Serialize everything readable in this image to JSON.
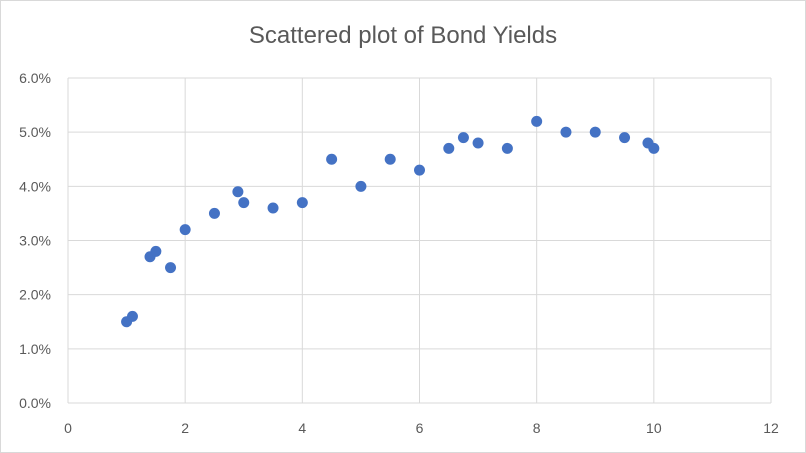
{
  "chart_data": {
    "type": "scatter",
    "title": "Scattered plot of Bond Yields",
    "xlabel": "",
    "ylabel": "",
    "xlim": [
      0,
      12
    ],
    "ylim": [
      0,
      0.06
    ],
    "x_ticks": [
      0,
      2,
      4,
      6,
      8,
      10,
      12
    ],
    "x_tick_labels": [
      "0",
      "2",
      "4",
      "6",
      "8",
      "10",
      "12"
    ],
    "y_ticks": [
      0,
      0.01,
      0.02,
      0.03,
      0.04,
      0.05,
      0.06
    ],
    "y_tick_labels": [
      "0.0%",
      "1.0%",
      "2.0%",
      "3.0%",
      "4.0%",
      "5.0%",
      "6.0%"
    ],
    "grid": {
      "vertical": true,
      "horizontal": true
    },
    "legend": "none",
    "colors": {
      "marker": "#4472c4",
      "grid": "#d9d9d9",
      "text": "#595959"
    },
    "series": [
      {
        "points": [
          [
            1.0,
            0.015
          ],
          [
            1.1,
            0.016
          ],
          [
            1.4,
            0.027
          ],
          [
            1.5,
            0.028
          ],
          [
            1.75,
            0.025
          ],
          [
            2.0,
            0.032
          ],
          [
            2.5,
            0.035
          ],
          [
            2.9,
            0.039
          ],
          [
            3.0,
            0.037
          ],
          [
            3.5,
            0.036
          ],
          [
            4.0,
            0.037
          ],
          [
            4.5,
            0.045
          ],
          [
            5.0,
            0.04
          ],
          [
            5.5,
            0.045
          ],
          [
            6.0,
            0.043
          ],
          [
            6.5,
            0.047
          ],
          [
            6.75,
            0.049
          ],
          [
            7.0,
            0.048
          ],
          [
            7.5,
            0.047
          ],
          [
            8.0,
            0.052
          ],
          [
            8.5,
            0.05
          ],
          [
            9.0,
            0.05
          ],
          [
            9.5,
            0.049
          ],
          [
            9.9,
            0.048
          ],
          [
            10.0,
            0.047
          ]
        ]
      }
    ]
  }
}
